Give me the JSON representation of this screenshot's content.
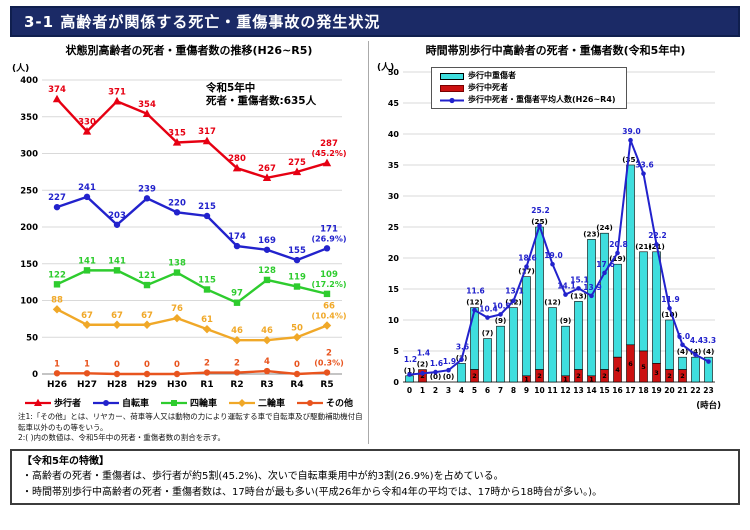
{
  "header": {
    "title": "3-1 高齢者が関係する死亡・重傷事故の発生状況"
  },
  "colors": {
    "header_bg": "#1b2a66",
    "grid": "#d9d9d9",
    "serious_bar": "#3fdede",
    "death_bar": "#cc1111",
    "avg_line": "#2222cc"
  },
  "chart_data": [
    {
      "id": "status-trend",
      "type": "line",
      "title": "状態別高齢者の死者・重傷者数の推移(H26~R5)",
      "y_unit": "(人)",
      "ylim": [
        0,
        400
      ],
      "ytick_step": 50,
      "grid": true,
      "annotation": [
        "令和5年中",
        "死者・重傷者数:635人"
      ],
      "categories": [
        "H26",
        "H27",
        "H28",
        "H29",
        "H30",
        "R1",
        "R2",
        "R3",
        "R4",
        "R5"
      ],
      "series": [
        {
          "name": "歩行者",
          "color": "#e60012",
          "marker": "triangle",
          "values": [
            374,
            330,
            371,
            354,
            315,
            317,
            280,
            267,
            275,
            287
          ],
          "final_pct": "(45.2%)"
        },
        {
          "name": "自転車",
          "color": "#2222cc",
          "marker": "circle",
          "values": [
            227,
            241,
            203,
            239,
            220,
            215,
            174,
            169,
            155,
            171
          ],
          "final_pct": "(26.9%)"
        },
        {
          "name": "四輪車",
          "color": "#2ecc2e",
          "marker": "square",
          "values": [
            122,
            141,
            141,
            121,
            138,
            115,
            97,
            128,
            119,
            109
          ],
          "final_pct": "(17.2%)"
        },
        {
          "name": "二輪車",
          "color": "#f0a828",
          "marker": "diamond",
          "values": [
            88,
            67,
            67,
            67,
            76,
            61,
            46,
            46,
            50,
            66
          ],
          "final_pct": "(10.4%)"
        },
        {
          "name": "その他",
          "color": "#e8541e",
          "marker": "circle",
          "values": [
            1,
            1,
            0,
            0,
            0,
            2,
            2,
            4,
            0,
            2
          ],
          "final_pct": "(0.3%)"
        }
      ]
    },
    {
      "id": "hourly-pedestrian",
      "type": "bar+line",
      "title": "時間帯別歩行中高齢者の死者・重傷者数(令和5年中)",
      "y_unit": "(人)",
      "x_unit": "(時台)",
      "ylim": [
        0,
        50
      ],
      "ytick_step": 5,
      "grid": true,
      "legend": [
        "歩行中重傷者",
        "歩行中死者",
        "歩行中死者・重傷者平均人数(H26~R4)"
      ],
      "hours": [
        0,
        1,
        2,
        3,
        4,
        5,
        6,
        7,
        8,
        9,
        10,
        11,
        12,
        13,
        14,
        15,
        16,
        17,
        18,
        19,
        20,
        21,
        22,
        23
      ],
      "serious": [
        1,
        0,
        0,
        0,
        3,
        10,
        7,
        9,
        12,
        16,
        23,
        12,
        8,
        11,
        22,
        22,
        15,
        29,
        16,
        18,
        8,
        2,
        4,
        4
      ],
      "deaths": [
        0,
        2,
        0,
        0,
        0,
        2,
        0,
        0,
        0,
        1,
        2,
        0,
        1,
        2,
        1,
        2,
        4,
        6,
        5,
        3,
        2,
        2,
        0,
        0
      ],
      "totals": [
        1,
        2,
        0,
        0,
        3,
        12,
        7,
        9,
        12,
        17,
        25,
        12,
        9,
        13,
        23,
        24,
        19,
        35,
        21,
        21,
        10,
        4,
        4,
        4
      ],
      "avg": [
        "1.2",
        "1.4",
        "1.6",
        "1.9",
        "3.6",
        "11.6",
        "10.4",
        "10.9",
        "13.1",
        "18.6",
        "25.2",
        "19.0",
        "14.1",
        "15.1",
        "13.9",
        "17.6",
        "20.8",
        "39.0",
        "33.6",
        "22.2",
        "11.9",
        "6.0",
        "4.4",
        "3.3"
      ]
    }
  ],
  "notes": [
    "注1:「その他」とは、リヤカー、荷車等人又は動物の力により運転する車で自転車及び駆動補助機付自転車以外のもの等をいう。",
    "2:( )内の数値は、令和5年中の死者・重傷者数の割合を示す。"
  ],
  "summary": {
    "heading": "【令和5年の特徴】",
    "points": [
      "・高齢者の死者・重傷者は、歩行者が約5割(45.2%)、次いで自転車乗用中が約3割(26.9%)を占めている。",
      "・時間帯別歩行中高齢者の死者・重傷者数は、17時台が最も多い(平成26年から令和4年の平均では、17時から18時台が多い。)。"
    ]
  }
}
